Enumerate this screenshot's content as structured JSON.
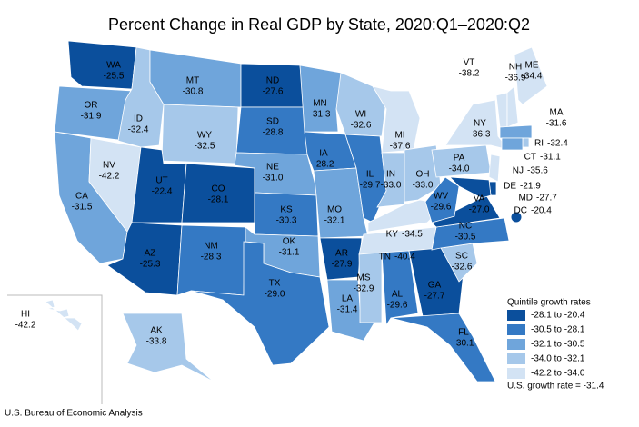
{
  "chart_data": {
    "type": "choropleth",
    "title": "Percent Change in Real GDP by State, 2020:Q1–2020:Q2",
    "categories": [
      "WA",
      "OR",
      "CA",
      "NV",
      "ID",
      "MT",
      "WY",
      "UT",
      "CO",
      "AZ",
      "NM",
      "ND",
      "SD",
      "NE",
      "KS",
      "OK",
      "TX",
      "MN",
      "IA",
      "MO",
      "AR",
      "LA",
      "WI",
      "IL",
      "MI",
      "IN",
      "OH",
      "KY",
      "TN",
      "MS",
      "AL",
      "GA",
      "FL",
      "SC",
      "NC",
      "VA",
      "WV",
      "PA",
      "NY",
      "VT",
      "NH",
      "ME",
      "MA",
      "RI",
      "CT",
      "NJ",
      "DE",
      "MD",
      "DC",
      "AK",
      "HI"
    ],
    "values": [
      -25.5,
      -31.9,
      -31.5,
      -42.2,
      -32.4,
      -30.8,
      -32.5,
      -22.4,
      -28.1,
      -25.3,
      -28.3,
      -27.6,
      -28.8,
      -31.0,
      -30.3,
      -31.1,
      -29.0,
      -31.3,
      -28.2,
      -32.1,
      -27.9,
      -31.4,
      -32.6,
      -29.7,
      -37.6,
      -33.0,
      -33.0,
      -34.5,
      -40.4,
      -32.9,
      -29.6,
      -27.7,
      -30.1,
      -32.6,
      -30.5,
      -27.0,
      -29.6,
      -34.0,
      -36.3,
      -38.2,
      -36.9,
      -34.4,
      -31.6,
      -32.4,
      -31.1,
      -35.6,
      -21.9,
      -27.7,
      -20.4,
      -33.8,
      -42.2
    ],
    "value_labels": [
      "-25.5",
      "-31.9",
      "-31.5",
      "-42.2",
      "-32.4",
      "-30.8",
      "-32.5",
      "-22.4",
      "-28.1",
      "-25.3",
      "-28.3",
      "-27.6",
      "-28.8",
      "-31.0",
      "-30.3",
      "-31.1",
      "-29.0",
      "-31.3",
      "-28.2",
      "-32.1",
      "-27.9",
      "-31.4",
      "-32.6",
      "-29.7",
      "-37.6",
      "-33.0",
      "-33.0",
      "-34.5",
      "-40.4",
      "-32.9",
      "-29.6",
      "-27.7",
      "-30.1",
      "-32.6",
      "-30.5",
      "-27.0",
      "-29.6",
      "-34.0",
      "-36.3",
      "-38.2",
      "-36.9",
      "-34.4",
      "-31.6",
      "-32.4",
      "-31.1",
      "-35.6",
      "-21.9",
      "-27.7",
      "-20.4",
      "-33.8",
      "-42.2"
    ],
    "colors": [
      "#0b4f9c",
      "#6fa5db",
      "#6fa5db",
      "#d3e3f4",
      "#a6c8ea",
      "#6fa5db",
      "#a6c8ea",
      "#0b4f9c",
      "#0b4f9c",
      "#0b4f9c",
      "#3479c4",
      "#0b4f9c",
      "#3479c4",
      "#6fa5db",
      "#3479c4",
      "#6fa5db",
      "#3479c4",
      "#6fa5db",
      "#3479c4",
      "#6fa5db",
      "#0b4f9c",
      "#6fa5db",
      "#a6c8ea",
      "#3479c4",
      "#d3e3f4",
      "#a6c8ea",
      "#a6c8ea",
      "#d3e3f4",
      "#d3e3f4",
      "#a6c8ea",
      "#3479c4",
      "#0b4f9c",
      "#3479c4",
      "#a6c8ea",
      "#3479c4",
      "#0b4f9c",
      "#3479c4",
      "#a6c8ea",
      "#d3e3f4",
      "#d3e3f4",
      "#d3e3f4",
      "#d3e3f4",
      "#6fa5db",
      "#a6c8ea",
      "#6fa5db",
      "#d3e3f4",
      "#0b4f9c",
      "#0b4f9c",
      "#0b4f9c",
      "#a6c8ea",
      "#d3e3f4"
    ],
    "legend": {
      "title": "Quintile growth rates",
      "items": [
        {
          "label": "-28.1 to -20.4",
          "color": "#0b4f9c"
        },
        {
          "label": "-30.5 to -28.1",
          "color": "#3479c4"
        },
        {
          "label": "-32.1 to -30.5",
          "color": "#6fa5db"
        },
        {
          "label": "-34.0 to -32.1",
          "color": "#a6c8ea"
        },
        {
          "label": "-42.2 to -34.0",
          "color": "#d3e3f4"
        }
      ],
      "note": "U.S. growth rate = -31.4"
    },
    "source": "U.S. Bureau of Economic Analysis"
  }
}
